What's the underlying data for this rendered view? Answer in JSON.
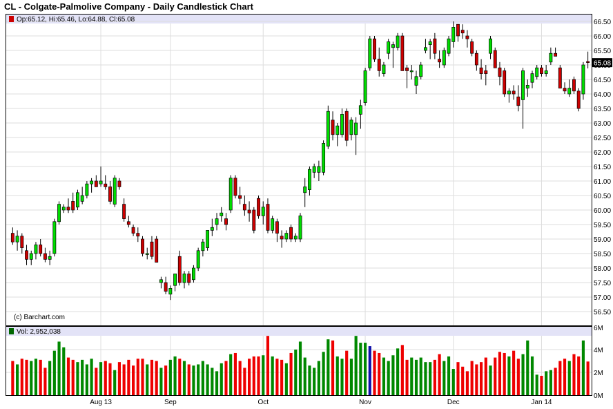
{
  "chart_data": {
    "type": "candlestick",
    "title": "CL - Colgate-Palmolive Company - Daily Candlestick Chart",
    "legend": {
      "ohlc_text": "Op:65.12, Hi:65.46, Lo:64.88, Cl:65.08",
      "volume_text": "Vol: 2,952,038",
      "copyright": "(c) Barchart.com"
    },
    "last_price_label": "65.08",
    "price_axis": {
      "min": 56.5,
      "max": 66.5,
      "ticks": [
        "66.50",
        "66.00",
        "65.50",
        "65.00",
        "64.50",
        "64.00",
        "63.50",
        "63.00",
        "62.50",
        "62.00",
        "61.50",
        "61.00",
        "60.50",
        "60.00",
        "59.50",
        "59.00",
        "58.50",
        "58.00",
        "57.50",
        "57.00",
        "56.50"
      ]
    },
    "volume_axis": {
      "min": 0,
      "max": 6000000,
      "ticks": [
        "6M",
        "4M",
        "2M",
        "0M"
      ]
    },
    "x_labels": [
      {
        "label": "Aug 13",
        "index": 19
      },
      {
        "label": "Sep",
        "index": 34
      },
      {
        "label": "Oct",
        "index": 54
      },
      {
        "label": "Nov",
        "index": 76
      },
      {
        "label": "Dec",
        "index": 95
      },
      {
        "label": "Jan 14",
        "index": 114
      }
    ],
    "candles": [
      {
        "o": 59.2,
        "h": 59.4,
        "l": 58.8,
        "c": 58.9,
        "v": 3000000
      },
      {
        "o": 58.9,
        "h": 59.3,
        "l": 58.6,
        "c": 59.1,
        "v": 2700000
      },
      {
        "o": 59.1,
        "h": 59.2,
        "l": 58.5,
        "c": 58.7,
        "v": 3200000
      },
      {
        "o": 58.6,
        "h": 58.8,
        "l": 58.1,
        "c": 58.3,
        "v": 3100000
      },
      {
        "o": 58.3,
        "h": 58.6,
        "l": 58.1,
        "c": 58.5,
        "v": 3000000
      },
      {
        "o": 58.5,
        "h": 58.9,
        "l": 58.3,
        "c": 58.8,
        "v": 3200000
      },
      {
        "o": 58.8,
        "h": 59.0,
        "l": 58.4,
        "c": 58.5,
        "v": 3100000
      },
      {
        "o": 58.5,
        "h": 58.7,
        "l": 58.2,
        "c": 58.3,
        "v": 2400000
      },
      {
        "o": 58.3,
        "h": 58.6,
        "l": 58.1,
        "c": 58.4,
        "v": 3000000
      },
      {
        "o": 58.5,
        "h": 59.7,
        "l": 58.4,
        "c": 59.6,
        "v": 3900000
      },
      {
        "o": 59.6,
        "h": 60.3,
        "l": 59.5,
        "c": 60.2,
        "v": 4700000
      },
      {
        "o": 60.0,
        "h": 60.2,
        "l": 59.9,
        "c": 60.1,
        "v": 4200000
      },
      {
        "o": 60.1,
        "h": 60.4,
        "l": 59.9,
        "c": 60.0,
        "v": 3300000
      },
      {
        "o": 60.3,
        "h": 60.6,
        "l": 59.9,
        "c": 60.0,
        "v": 3100000
      },
      {
        "o": 60.1,
        "h": 60.7,
        "l": 60.0,
        "c": 60.6,
        "v": 2900000
      },
      {
        "o": 60.3,
        "h": 60.8,
        "l": 60.2,
        "c": 60.5,
        "v": 3100000
      },
      {
        "o": 60.5,
        "h": 61.0,
        "l": 60.4,
        "c": 60.9,
        "v": 2700000
      },
      {
        "o": 60.9,
        "h": 61.1,
        "l": 60.6,
        "c": 61.0,
        "v": 3200000
      },
      {
        "o": 61.0,
        "h": 61.2,
        "l": 60.8,
        "c": 60.8,
        "v": 2400000
      },
      {
        "o": 60.9,
        "h": 61.5,
        "l": 60.8,
        "c": 61.0,
        "v": 2900000
      },
      {
        "o": 60.9,
        "h": 61.2,
        "l": 60.7,
        "c": 60.8,
        "v": 3000000
      },
      {
        "o": 60.8,
        "h": 61.0,
        "l": 60.2,
        "c": 60.3,
        "v": 2800000
      },
      {
        "o": 60.2,
        "h": 61.2,
        "l": 60.1,
        "c": 61.1,
        "v": 2200000
      },
      {
        "o": 61.0,
        "h": 61.1,
        "l": 60.7,
        "c": 60.8,
        "v": 2900000
      },
      {
        "o": 60.2,
        "h": 60.4,
        "l": 59.6,
        "c": 59.7,
        "v": 2700000
      },
      {
        "o": 59.6,
        "h": 59.8,
        "l": 59.4,
        "c": 59.5,
        "v": 3100000
      },
      {
        "o": 59.4,
        "h": 59.5,
        "l": 59.1,
        "c": 59.2,
        "v": 2600000
      },
      {
        "o": 59.2,
        "h": 59.4,
        "l": 58.9,
        "c": 59.1,
        "v": 3200000
      },
      {
        "o": 59.0,
        "h": 59.1,
        "l": 58.4,
        "c": 58.5,
        "v": 3200000
      },
      {
        "o": 58.5,
        "h": 58.7,
        "l": 58.3,
        "c": 58.5,
        "v": 2700000
      },
      {
        "o": 58.9,
        "h": 59.1,
        "l": 58.3,
        "c": 58.4,
        "v": 3100000
      },
      {
        "o": 59.0,
        "h": 59.1,
        "l": 58.2,
        "c": 58.2,
        "v": 3000000
      },
      {
        "o": 57.5,
        "h": 57.7,
        "l": 57.3,
        "c": 57.6,
        "v": 2400000
      },
      {
        "o": 57.5,
        "h": 57.7,
        "l": 57.1,
        "c": 57.2,
        "v": 2600000
      },
      {
        "o": 57.1,
        "h": 57.4,
        "l": 56.9,
        "c": 57.3,
        "v": 3100000
      },
      {
        "o": 57.4,
        "h": 57.8,
        "l": 57.2,
        "c": 57.8,
        "v": 3400000
      },
      {
        "o": 58.4,
        "h": 58.6,
        "l": 57.4,
        "c": 57.5,
        "v": 3200000
      },
      {
        "o": 57.5,
        "h": 57.9,
        "l": 57.3,
        "c": 57.8,
        "v": 3000000
      },
      {
        "o": 57.8,
        "h": 57.9,
        "l": 57.4,
        "c": 57.5,
        "v": 2700000
      },
      {
        "o": 57.6,
        "h": 58.1,
        "l": 57.5,
        "c": 58.0,
        "v": 2600000
      },
      {
        "o": 58.0,
        "h": 58.7,
        "l": 57.9,
        "c": 58.6,
        "v": 2700000
      },
      {
        "o": 58.6,
        "h": 59.0,
        "l": 58.4,
        "c": 58.9,
        "v": 3000000
      },
      {
        "o": 58.7,
        "h": 59.3,
        "l": 58.6,
        "c": 59.3,
        "v": 2700000
      },
      {
        "o": 59.3,
        "h": 59.7,
        "l": 59.1,
        "c": 59.4,
        "v": 2400000
      },
      {
        "o": 59.5,
        "h": 59.9,
        "l": 59.3,
        "c": 59.7,
        "v": 2100000
      },
      {
        "o": 59.8,
        "h": 60.1,
        "l": 59.6,
        "c": 59.9,
        "v": 2800000
      },
      {
        "o": 59.7,
        "h": 59.9,
        "l": 59.3,
        "c": 59.5,
        "v": 3000000
      },
      {
        "o": 60.0,
        "h": 61.2,
        "l": 59.9,
        "c": 61.1,
        "v": 3600000
      },
      {
        "o": 61.1,
        "h": 61.2,
        "l": 60.4,
        "c": 60.5,
        "v": 3700000
      },
      {
        "o": 60.5,
        "h": 60.8,
        "l": 60.2,
        "c": 60.4,
        "v": 3000000
      },
      {
        "o": 60.2,
        "h": 60.5,
        "l": 59.8,
        "c": 60.0,
        "v": 2400000
      },
      {
        "o": 60.0,
        "h": 60.3,
        "l": 59.6,
        "c": 59.9,
        "v": 3200000
      },
      {
        "o": 60.0,
        "h": 60.1,
        "l": 59.2,
        "c": 59.3,
        "v": 3400000
      },
      {
        "o": 60.4,
        "h": 60.5,
        "l": 59.7,
        "c": 59.8,
        "v": 3400000
      },
      {
        "o": 59.8,
        "h": 60.3,
        "l": 59.5,
        "c": 60.1,
        "v": 3500000
      },
      {
        "o": 60.2,
        "h": 60.4,
        "l": 59.2,
        "c": 59.3,
        "v": 5200000
      },
      {
        "o": 59.3,
        "h": 59.8,
        "l": 59.2,
        "c": 59.7,
        "v": 3400000
      },
      {
        "o": 59.6,
        "h": 59.7,
        "l": 58.9,
        "c": 59.2,
        "v": 3200000
      },
      {
        "o": 59.1,
        "h": 59.3,
        "l": 58.7,
        "c": 59.0,
        "v": 3100000
      },
      {
        "o": 59.0,
        "h": 59.3,
        "l": 58.9,
        "c": 59.2,
        "v": 2800000
      },
      {
        "o": 59.4,
        "h": 59.5,
        "l": 58.9,
        "c": 59.0,
        "v": 3700000
      },
      {
        "o": 59.0,
        "h": 59.2,
        "l": 58.9,
        "c": 59.1,
        "v": 4000000
      },
      {
        "o": 59.0,
        "h": 59.9,
        "l": 58.9,
        "c": 59.8,
        "v": 4700000
      },
      {
        "o": 60.6,
        "h": 61.1,
        "l": 60.1,
        "c": 60.8,
        "v": 3300000
      },
      {
        "o": 60.7,
        "h": 61.5,
        "l": 60.5,
        "c": 61.4,
        "v": 2600000
      },
      {
        "o": 61.3,
        "h": 61.6,
        "l": 61.1,
        "c": 61.5,
        "v": 2400000
      },
      {
        "o": 61.3,
        "h": 61.7,
        "l": 61.0,
        "c": 61.5,
        "v": 3000000
      },
      {
        "o": 61.3,
        "h": 62.4,
        "l": 61.2,
        "c": 62.3,
        "v": 3800000
      },
      {
        "o": 62.2,
        "h": 63.6,
        "l": 62.1,
        "c": 63.4,
        "v": 4900000
      },
      {
        "o": 63.1,
        "h": 63.4,
        "l": 62.4,
        "c": 62.6,
        "v": 4800000
      },
      {
        "o": 62.6,
        "h": 63.0,
        "l": 62.2,
        "c": 62.9,
        "v": 3400000
      },
      {
        "o": 62.6,
        "h": 63.5,
        "l": 62.5,
        "c": 63.3,
        "v": 3200000
      },
      {
        "o": 63.4,
        "h": 63.5,
        "l": 62.2,
        "c": 62.4,
        "v": 3900000
      },
      {
        "o": 62.6,
        "h": 63.2,
        "l": 62.4,
        "c": 63.1,
        "v": 3200000
      },
      {
        "o": 62.6,
        "h": 63.2,
        "l": 61.9,
        "c": 63.0,
        "v": 5200000
      },
      {
        "o": 63.3,
        "h": 63.8,
        "l": 62.8,
        "c": 63.6,
        "v": 4600000
      },
      {
        "o": 63.7,
        "h": 64.9,
        "l": 63.6,
        "c": 64.8,
        "v": 4600000
      },
      {
        "o": 64.9,
        "h": 66.0,
        "l": 64.8,
        "c": 65.9,
        "v": 4300000
      },
      {
        "o": 65.9,
        "h": 66.0,
        "l": 65.1,
        "c": 65.2,
        "v": 3900000
      },
      {
        "o": 65.2,
        "h": 65.6,
        "l": 64.6,
        "c": 64.8,
        "v": 3700000
      },
      {
        "o": 64.7,
        "h": 65.1,
        "l": 64.6,
        "c": 65.0,
        "v": 3300000
      },
      {
        "o": 65.4,
        "h": 65.9,
        "l": 65.2,
        "c": 65.8,
        "v": 3000000
      },
      {
        "o": 65.6,
        "h": 65.8,
        "l": 64.9,
        "c": 65.7,
        "v": 3500000
      },
      {
        "o": 65.6,
        "h": 66.1,
        "l": 65.5,
        "c": 66.0,
        "v": 4100000
      },
      {
        "o": 66.0,
        "h": 66.1,
        "l": 64.8,
        "c": 64.8,
        "v": 4400000
      },
      {
        "o": 64.9,
        "h": 65.0,
        "l": 64.2,
        "c": 64.8,
        "v": 3100000
      },
      {
        "o": 64.8,
        "h": 65.0,
        "l": 64.5,
        "c": 64.8,
        "v": 3300000
      },
      {
        "o": 64.3,
        "h": 64.8,
        "l": 64.0,
        "c": 64.6,
        "v": 3100000
      },
      {
        "o": 64.6,
        "h": 65.1,
        "l": 64.5,
        "c": 65.0,
        "v": 3300000
      },
      {
        "o": 65.5,
        "h": 65.9,
        "l": 65.4,
        "c": 65.6,
        "v": 2900000
      },
      {
        "o": 65.7,
        "h": 65.9,
        "l": 65.2,
        "c": 65.8,
        "v": 2900000
      },
      {
        "o": 65.9,
        "h": 66.1,
        "l": 65.2,
        "c": 65.4,
        "v": 3100000
      },
      {
        "o": 65.2,
        "h": 65.5,
        "l": 64.9,
        "c": 65.1,
        "v": 3600000
      },
      {
        "o": 65.0,
        "h": 65.6,
        "l": 64.9,
        "c": 65.5,
        "v": 3000000
      },
      {
        "o": 65.4,
        "h": 66.0,
        "l": 65.3,
        "c": 65.9,
        "v": 3400000
      },
      {
        "o": 65.8,
        "h": 66.5,
        "l": 65.6,
        "c": 66.3,
        "v": 2300000
      },
      {
        "o": 66.4,
        "h": 66.4,
        "l": 65.8,
        "c": 66.0,
        "v": 2900000
      },
      {
        "o": 66.2,
        "h": 66.4,
        "l": 65.9,
        "c": 66.1,
        "v": 2500000
      },
      {
        "o": 66.0,
        "h": 66.2,
        "l": 65.6,
        "c": 65.9,
        "v": 2100000
      },
      {
        "o": 65.8,
        "h": 65.9,
        "l": 65.3,
        "c": 65.4,
        "v": 3000000
      },
      {
        "o": 65.4,
        "h": 65.5,
        "l": 64.8,
        "c": 65.0,
        "v": 2700000
      },
      {
        "o": 64.9,
        "h": 65.2,
        "l": 64.5,
        "c": 64.7,
        "v": 2900000
      },
      {
        "o": 64.8,
        "h": 65.0,
        "l": 64.3,
        "c": 64.7,
        "v": 3300000
      },
      {
        "o": 65.4,
        "h": 66.0,
        "l": 65.2,
        "c": 65.9,
        "v": 2600000
      },
      {
        "o": 65.5,
        "h": 65.6,
        "l": 64.9,
        "c": 64.9,
        "v": 3300000
      },
      {
        "o": 64.9,
        "h": 65.1,
        "l": 64.3,
        "c": 64.6,
        "v": 3800000
      },
      {
        "o": 64.8,
        "h": 64.9,
        "l": 63.9,
        "c": 64.0,
        "v": 3700000
      },
      {
        "o": 64.0,
        "h": 64.2,
        "l": 63.7,
        "c": 64.1,
        "v": 3400000
      },
      {
        "o": 64.1,
        "h": 64.3,
        "l": 63.8,
        "c": 64.0,
        "v": 3900000
      },
      {
        "o": 63.9,
        "h": 64.3,
        "l": 63.4,
        "c": 63.6,
        "v": 3200000
      },
      {
        "o": 63.8,
        "h": 64.9,
        "l": 62.8,
        "c": 64.8,
        "v": 3600000
      },
      {
        "o": 64.2,
        "h": 64.5,
        "l": 63.9,
        "c": 64.3,
        "v": 4800000
      },
      {
        "o": 64.4,
        "h": 64.8,
        "l": 64.2,
        "c": 64.7,
        "v": 3400000
      },
      {
        "o": 64.6,
        "h": 65.0,
        "l": 64.5,
        "c": 64.9,
        "v": 1800000
      },
      {
        "o": 64.9,
        "h": 65.0,
        "l": 64.6,
        "c": 64.7,
        "v": 1700000
      },
      {
        "o": 64.7,
        "h": 65.0,
        "l": 64.6,
        "c": 64.8,
        "v": 2100000
      },
      {
        "o": 65.1,
        "h": 65.6,
        "l": 65.0,
        "c": 65.4,
        "v": 2200000
      },
      {
        "o": 65.4,
        "h": 65.6,
        "l": 65.3,
        "c": 65.3,
        "v": 2400000
      },
      {
        "o": 64.9,
        "h": 65.0,
        "l": 64.2,
        "c": 64.2,
        "v": 3000000
      },
      {
        "o": 64.2,
        "h": 64.4,
        "l": 64.0,
        "c": 64.1,
        "v": 3200000
      },
      {
        "o": 64.0,
        "h": 64.5,
        "l": 63.9,
        "c": 64.2,
        "v": 3000000
      },
      {
        "o": 64.5,
        "h": 64.6,
        "l": 64.0,
        "c": 64.1,
        "v": 3600000
      },
      {
        "o": 64.1,
        "h": 64.2,
        "l": 63.4,
        "c": 63.5,
        "v": 3400000
      },
      {
        "o": 64.0,
        "h": 65.1,
        "l": 63.8,
        "c": 65.0,
        "v": 4800000
      },
      {
        "o": 65.12,
        "h": 65.46,
        "l": 64.88,
        "c": 65.08,
        "v": 2952038
      }
    ]
  }
}
